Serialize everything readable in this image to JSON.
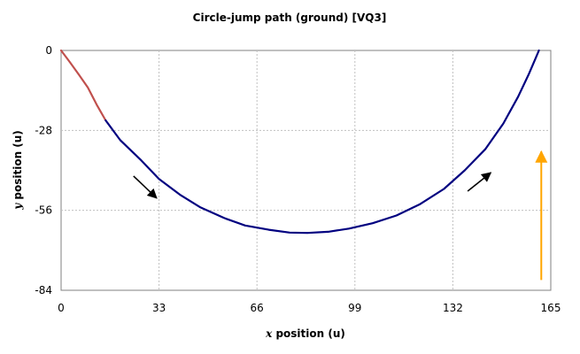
{
  "chart_data": {
    "type": "line",
    "title": "Circle-jump path (ground) [VQ3]",
    "xlabel_var": "x",
    "xlabel_rest": " position (u)",
    "ylabel_var": "y",
    "ylabel_rest": " position (u)",
    "xlim": [
      0,
      165
    ],
    "ylim": [
      -84,
      0
    ],
    "xticks": [
      "0",
      "33",
      "66",
      "99",
      "132",
      "165"
    ],
    "yticks": [
      "0",
      "-28",
      "-56",
      "-84"
    ],
    "xtick_values": [
      0,
      33,
      66,
      99,
      132,
      165
    ],
    "ytick_values": [
      0,
      -28,
      -56,
      -84
    ],
    "grid": true,
    "series": [
      {
        "color": "#c0504d",
        "points": [
          [
            0,
            0
          ],
          [
            3,
            -4.2
          ],
          [
            6,
            -8.5
          ],
          [
            9,
            -13
          ],
          [
            12,
            -19
          ],
          [
            15,
            -24.5
          ]
        ]
      },
      {
        "color": "#000080",
        "points": [
          [
            15,
            -24.5
          ],
          [
            20,
            -31.5
          ],
          [
            27,
            -38.5
          ],
          [
            33,
            -45
          ],
          [
            40,
            -50.5
          ],
          [
            47,
            -55
          ],
          [
            55,
            -58.7
          ],
          [
            62,
            -61.3
          ],
          [
            70,
            -62.8
          ],
          [
            77,
            -63.8
          ],
          [
            83,
            -63.9
          ],
          [
            90,
            -63.5
          ],
          [
            97,
            -62.4
          ],
          [
            105,
            -60.5
          ],
          [
            113,
            -57.8
          ],
          [
            121,
            -53.8
          ],
          [
            129,
            -48.5
          ],
          [
            136,
            -42
          ],
          [
            143,
            -34.5
          ],
          [
            149,
            -25.6
          ],
          [
            154,
            -16.2
          ],
          [
            157.5,
            -8.5
          ],
          [
            160,
            -2.5
          ],
          [
            161,
            0
          ]
        ]
      }
    ],
    "annotations": [
      {
        "type": "arrow",
        "color": "#000000",
        "from": [
          24.4,
          -44
        ],
        "to": [
          32.2,
          -51.7
        ]
      },
      {
        "type": "arrow",
        "color": "#000000",
        "from": [
          137,
          -49.3
        ],
        "to": [
          144.8,
          -42.8
        ]
      },
      {
        "type": "arrow",
        "color": "#ffa500",
        "from": [
          161.8,
          -80.4
        ],
        "to": [
          161.8,
          -35.4
        ]
      }
    ]
  }
}
